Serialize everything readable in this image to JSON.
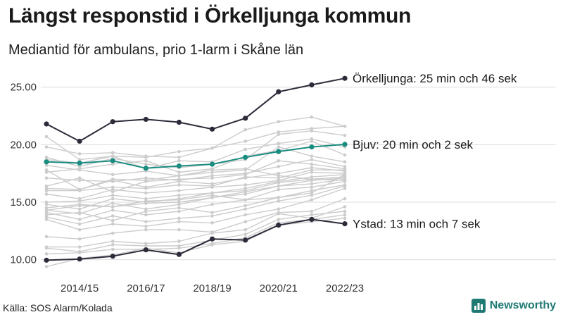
{
  "title": "Längst responstid i Örkelljunga kommun",
  "subtitle": "Mediantid för ambulans, prio 1-larm i Skåne län",
  "source": "Källa: SOS Alarm/Kolada",
  "brand": {
    "name": "Newsworthy",
    "icon": "bar-chart-icon"
  },
  "colors": {
    "highlight_dark": "#2b2b3a",
    "highlight_teal": "#1a8c80",
    "background_lines": "#cccccc",
    "grid": "#dddddd",
    "brand": "#1f7a74"
  },
  "chart_data": {
    "type": "line",
    "x": [
      "2013/14",
      "2014/15",
      "2015/16",
      "2016/17",
      "2017/18",
      "2018/19",
      "2019/20",
      "2020/21",
      "2021/22",
      "2022/23"
    ],
    "x_tick_labels": [
      "2014/15",
      "2016/17",
      "2018/19",
      "2020/21",
      "2022/23"
    ],
    "y_tick_labels": [
      "10.00",
      "15.00",
      "20.00",
      "25.00"
    ],
    "ylim": [
      9.3,
      26.7
    ],
    "grid": "horizontal",
    "highlighted_series": [
      {
        "name": "Örkelljunga",
        "label": "Örkelljunga: 25 min och 46 sek",
        "color": "#2b2b3a",
        "values": [
          21.8,
          20.3,
          22.0,
          22.2,
          21.95,
          21.35,
          22.3,
          24.6,
          25.2,
          25.77
        ]
      },
      {
        "name": "Bjuv",
        "label": "Bjuv: 20 min och 2 sek",
        "color": "#1a8c80",
        "values": [
          18.5,
          18.4,
          18.6,
          17.95,
          18.15,
          18.3,
          18.9,
          19.4,
          19.8,
          20.03
        ]
      },
      {
        "name": "Ystad",
        "label": "Ystad: 13 min och 7 sek",
        "color": "#2b2b3a",
        "values": [
          9.95,
          10.05,
          10.3,
          10.85,
          10.45,
          11.8,
          11.7,
          13.0,
          13.5,
          13.12
        ]
      }
    ],
    "background_series": [
      {
        "values": [
          20.7,
          18.7,
          19.0,
          18.9,
          19.4,
          19.7,
          21.3,
          22.0,
          22.4,
          21.6
        ]
      },
      {
        "values": [
          19.8,
          19.2,
          19.3,
          19.0,
          18.9,
          19.7,
          20.3,
          21.1,
          21.4,
          21.6
        ]
      },
      {
        "values": [
          18.9,
          18.1,
          18.8,
          18.3,
          18.0,
          18.3,
          18.7,
          20.9,
          21.2,
          20.8
        ]
      },
      {
        "values": [
          18.7,
          18.4,
          19.0,
          17.9,
          18.6,
          18.5,
          19.6,
          20.1,
          20.5,
          19.8
        ]
      },
      {
        "values": [
          17.6,
          17.9,
          18.3,
          18.6,
          17.6,
          17.9,
          19.0,
          19.5,
          20.3,
          19.1
        ]
      },
      {
        "values": [
          17.8,
          16.1,
          17.0,
          16.9,
          17.3,
          17.6,
          17.8,
          19.8,
          19.0,
          18.5
        ]
      },
      {
        "values": [
          17.1,
          16.9,
          16.8,
          17.1,
          16.9,
          17.3,
          17.5,
          18.1,
          18.7,
          18.1
        ]
      },
      {
        "values": [
          16.4,
          17.1,
          15.9,
          16.8,
          17.0,
          17.1,
          17.4,
          18.6,
          18.3,
          17.9
        ]
      },
      {
        "values": [
          16.2,
          16.1,
          16.9,
          16.3,
          16.8,
          16.6,
          17.1,
          17.5,
          18.0,
          17.7
        ]
      },
      {
        "values": [
          16.0,
          16.0,
          16.3,
          16.2,
          16.5,
          16.4,
          17.2,
          17.1,
          17.8,
          17.8
        ]
      },
      {
        "values": [
          15.7,
          15.3,
          16.1,
          15.8,
          16.0,
          16.3,
          16.5,
          16.9,
          17.6,
          17.5
        ]
      },
      {
        "values": [
          15.0,
          15.1,
          15.6,
          15.3,
          15.6,
          15.8,
          16.2,
          16.8,
          17.2,
          17.4
        ]
      },
      {
        "values": [
          14.8,
          14.4,
          15.3,
          15.0,
          15.3,
          15.8,
          16.0,
          16.7,
          17.0,
          17.2
        ]
      },
      {
        "values": [
          14.5,
          14.8,
          14.6,
          14.9,
          15.0,
          15.4,
          15.7,
          16.4,
          16.6,
          17.0
        ]
      },
      {
        "values": [
          14.3,
          14.0,
          14.9,
          14.4,
          14.8,
          15.4,
          15.9,
          16.4,
          16.9,
          17.1
        ]
      },
      {
        "values": [
          14.1,
          13.5,
          14.3,
          13.9,
          14.2,
          14.8,
          15.2,
          16.1,
          16.3,
          16.8
        ]
      },
      {
        "values": [
          13.9,
          14.1,
          13.4,
          14.2,
          14.5,
          14.1,
          14.7,
          15.4,
          16.0,
          16.5
        ]
      },
      {
        "values": [
          13.7,
          13.1,
          13.8,
          13.3,
          13.6,
          13.8,
          14.4,
          15.1,
          15.6,
          16.4
        ]
      },
      {
        "values": [
          13.5,
          12.6,
          13.1,
          12.9,
          13.3,
          13.2,
          13.9,
          14.4,
          15.2,
          16.2
        ]
      },
      {
        "values": [
          12.0,
          11.8,
          12.3,
          12.6,
          12.6,
          12.4,
          13.3,
          14.1,
          14.2,
          15.3
        ]
      },
      {
        "values": [
          11.1,
          11.1,
          11.6,
          11.4,
          11.6,
          12.3,
          12.6,
          14.0,
          13.6,
          14.6
        ]
      },
      {
        "values": [
          11.0,
          10.7,
          11.3,
          11.2,
          11.2,
          11.7,
          12.2,
          13.5,
          13.9,
          14.2
        ]
      },
      {
        "values": [
          10.5,
          10.6,
          10.9,
          10.9,
          11.0,
          11.4,
          11.9,
          13.2,
          13.5,
          13.9
        ]
      },
      {
        "values": [
          9.4,
          10.1,
          10.4,
          11.0,
          10.6,
          11.3,
          11.6,
          13.0,
          13.3,
          13.6
        ]
      },
      {
        "values": [
          18.2,
          17.8,
          17.4,
          17.7,
          17.3,
          17.8,
          17.9,
          17.3,
          17.0,
          16.9
        ]
      },
      {
        "values": [
          14.3,
          14.7,
          14.6,
          15.1,
          15.2,
          15.6,
          15.2,
          15.4,
          15.8,
          17.4
        ]
      }
    ]
  }
}
